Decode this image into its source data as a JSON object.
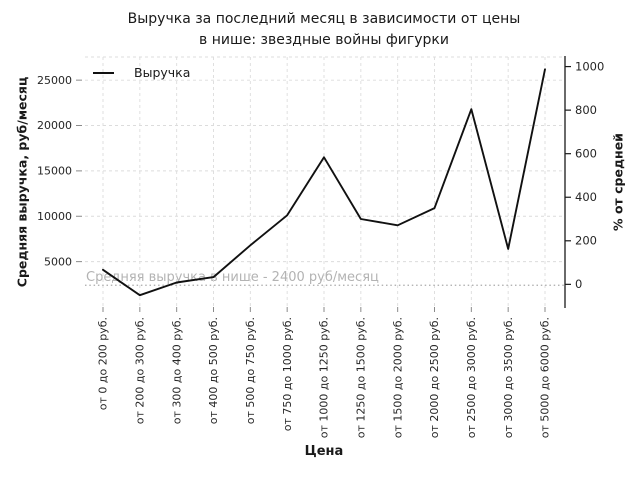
{
  "chart_data": {
    "type": "line",
    "title": "Выручка за последний месяц в зависимости от цены\nв нише: звездные войны фигурки",
    "xlabel": "Цена",
    "ylabel": "Средняя выручка, руб/месяц",
    "ylabel_right": "% от средней",
    "categories": [
      "от 0 до 200 руб.",
      "от 200 до 300 руб.",
      "от 300 до 400 руб.",
      "от 400 до 500 руб.",
      "от 500 до 750 руб.",
      "от 750 до 1000 руб.",
      "от 1000 до 1250 руб.",
      "от 1250 до 1500 руб.",
      "от 1500 до 2000 руб.",
      "от 2000 до 2500 руб.",
      "от 2500 до 3000 руб.",
      "от 3000 до 3500 руб.",
      "от 5000 до 6000 руб."
    ],
    "series": [
      {
        "name": "Выручка",
        "color": "#111111",
        "values": [
          4100,
          1300,
          2700,
          3300,
          6800,
          10100,
          16500,
          9700,
          9000,
          10900,
          21800,
          6400,
          26200
        ]
      }
    ],
    "ylim_left": [
      0,
      27550
    ],
    "yticks_left": [
      5000,
      10000,
      15000,
      20000,
      25000
    ],
    "ylim_right": [
      -104,
      1044
    ],
    "yticks_right": [
      0,
      200,
      400,
      600,
      800,
      1000
    ],
    "average_line": {
      "value": 2400,
      "label": "Средняя выручка в нише - 2400 руб/месяц",
      "color": "#aaaaaa"
    },
    "grid": true,
    "legend_position": "upper left",
    "colors": {
      "grid": "#dcdcdc",
      "tick_text": "#262626",
      "annotation": "#b3b3b3",
      "right_spine": "#1a1a1a",
      "tick_mark": "#8a8a8a"
    }
  }
}
